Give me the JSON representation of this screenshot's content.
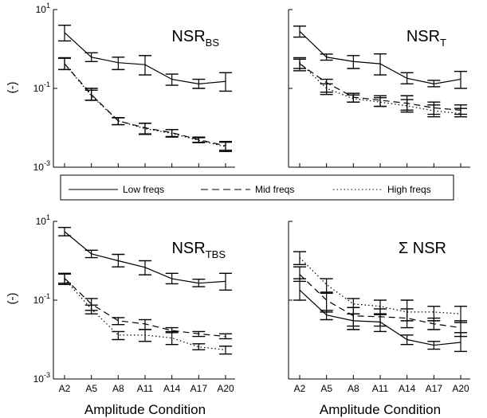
{
  "figure": {
    "legend": {
      "placement": "center-between-rows",
      "entries": [
        {
          "label": "Low freqs",
          "style": "solid"
        },
        {
          "label": "Mid freqs",
          "style": "dashed"
        },
        {
          "label": "High freqs",
          "style": "dotted"
        }
      ]
    },
    "axis_labels": {
      "xlabel": "Amplitude Condition",
      "ylabel": "(-)"
    }
  },
  "chart_data": [
    {
      "type": "line",
      "title_main": "NSR",
      "title_sub": "BS",
      "yscale": "log",
      "ylim": [
        0.001,
        10
      ],
      "yticks": [
        {
          "value": 10,
          "base": "10",
          "exp": "1"
        },
        {
          "value": 0.1,
          "base": "10",
          "exp": "-1"
        },
        {
          "value": 0.001,
          "base": "10",
          "exp": "-3"
        }
      ],
      "categories": [
        "A2",
        "A5",
        "A8",
        "A11",
        "A14",
        "A17",
        "A20"
      ],
      "show_xticklabels": false,
      "show_ylabels": true,
      "series": [
        {
          "name": "Low freqs",
          "style": "solid",
          "values": [
            2.6,
            0.62,
            0.45,
            0.4,
            0.17,
            0.13,
            0.15
          ],
          "lower": [
            1.6,
            0.48,
            0.3,
            0.22,
            0.12,
            0.1,
            0.085
          ],
          "upper": [
            4.0,
            0.8,
            0.62,
            0.68,
            0.23,
            0.17,
            0.25
          ]
        },
        {
          "name": "Mid freqs",
          "style": "dashed",
          "values": [
            0.42,
            0.07,
            0.015,
            0.01,
            0.0075,
            0.005,
            0.0035
          ],
          "lower": [
            0.3,
            0.05,
            0.012,
            0.007,
            0.006,
            0.0043,
            0.0027
          ],
          "upper": [
            0.6,
            0.1,
            0.018,
            0.013,
            0.009,
            0.0058,
            0.0045
          ]
        },
        {
          "name": "High freqs",
          "style": "dotted",
          "values": [
            0.42,
            0.065,
            0.015,
            0.0095,
            0.0072,
            0.0048,
            0.0033
          ],
          "lower": [
            0.3,
            0.05,
            0.012,
            0.0068,
            0.0058,
            0.0042,
            0.0025
          ],
          "upper": [
            0.58,
            0.09,
            0.018,
            0.013,
            0.009,
            0.0056,
            0.0043
          ]
        }
      ]
    },
    {
      "type": "line",
      "title_main": "NSR",
      "title_sub": "T",
      "yscale": "log",
      "ylim": [
        0.001,
        10
      ],
      "yticks": [],
      "categories": [
        "A2",
        "A5",
        "A8",
        "A11",
        "A14",
        "A17",
        "A20"
      ],
      "show_xticklabels": false,
      "show_ylabels": false,
      "series": [
        {
          "name": "Low freqs",
          "style": "solid",
          "values": [
            2.8,
            0.62,
            0.48,
            0.42,
            0.18,
            0.13,
            0.17
          ],
          "lower": [
            2.0,
            0.52,
            0.32,
            0.22,
            0.13,
            0.11,
            0.1
          ],
          "upper": [
            3.8,
            0.74,
            0.68,
            0.75,
            0.25,
            0.16,
            0.27
          ]
        },
        {
          "name": "Mid freqs",
          "style": "dashed",
          "values": [
            0.42,
            0.14,
            0.06,
            0.05,
            0.042,
            0.032,
            0.028
          ],
          "lower": [
            0.28,
            0.08,
            0.045,
            0.035,
            0.028,
            0.022,
            0.022
          ],
          "upper": [
            0.55,
            0.17,
            0.075,
            0.065,
            0.065,
            0.045,
            0.038
          ]
        },
        {
          "name": "High freqs",
          "style": "dotted",
          "values": [
            0.45,
            0.1,
            0.055,
            0.045,
            0.036,
            0.027,
            0.023
          ],
          "lower": [
            0.32,
            0.07,
            0.045,
            0.035,
            0.025,
            0.019,
            0.019
          ],
          "upper": [
            0.6,
            0.13,
            0.068,
            0.058,
            0.052,
            0.038,
            0.031
          ]
        }
      ]
    },
    {
      "type": "line",
      "title_main": "NSR",
      "title_sub": "TBS",
      "yscale": "log",
      "ylim": [
        0.001,
        10
      ],
      "yticks": [
        {
          "value": 10,
          "base": "10",
          "exp": "1"
        },
        {
          "value": 0.1,
          "base": "10",
          "exp": "-1"
        },
        {
          "value": 0.001,
          "base": "10",
          "exp": "-3"
        }
      ],
      "categories": [
        "A2",
        "A5",
        "A8",
        "A11",
        "A14",
        "A17",
        "A20"
      ],
      "show_xticklabels": true,
      "show_ylabels": true,
      "series": [
        {
          "name": "Low freqs",
          "style": "solid",
          "values": [
            5.5,
            1.5,
            1.0,
            0.68,
            0.35,
            0.27,
            0.3
          ],
          "lower": [
            4.3,
            1.2,
            0.7,
            0.44,
            0.26,
            0.22,
            0.18
          ],
          "upper": [
            7.0,
            1.85,
            1.45,
            1.0,
            0.48,
            0.34,
            0.48
          ]
        },
        {
          "name": "Mid freqs",
          "style": "dashed",
          "values": [
            0.36,
            0.08,
            0.03,
            0.025,
            0.017,
            0.014,
            0.012
          ],
          "lower": [
            0.27,
            0.055,
            0.024,
            0.018,
            0.015,
            0.012,
            0.0105
          ],
          "upper": [
            0.48,
            0.11,
            0.036,
            0.032,
            0.02,
            0.016,
            0.014
          ]
        },
        {
          "name": "High freqs",
          "style": "dotted",
          "values": [
            0.34,
            0.06,
            0.013,
            0.013,
            0.011,
            0.0065,
            0.0055
          ],
          "lower": [
            0.25,
            0.045,
            0.01,
            0.009,
            0.0075,
            0.0055,
            0.0043
          ],
          "upper": [
            0.46,
            0.075,
            0.016,
            0.018,
            0.016,
            0.0078,
            0.0068
          ]
        }
      ]
    },
    {
      "type": "line",
      "title_main": "Σ NSR",
      "title_sub": "",
      "yscale": "log",
      "ylim": [
        0.001,
        10
      ],
      "yticks": [],
      "categories": [
        "A2",
        "A5",
        "A8",
        "A11",
        "A14",
        "A17",
        "A20"
      ],
      "show_xticklabels": true,
      "show_ylabels": false,
      "series": [
        {
          "name": "Low freqs",
          "style": "solid",
          "values": [
            0.18,
            0.042,
            0.03,
            0.028,
            0.01,
            0.0072,
            0.0085
          ],
          "lower": [
            0.1,
            0.032,
            0.018,
            0.016,
            0.0075,
            0.0057,
            0.005
          ],
          "upper": [
            0.35,
            0.055,
            0.045,
            0.043,
            0.013,
            0.009,
            0.015
          ]
        },
        {
          "name": "Mid freqs",
          "style": "dashed",
          "values": [
            0.45,
            0.1,
            0.04,
            0.038,
            0.035,
            0.025,
            0.02
          ],
          "lower": [
            0.3,
            0.05,
            0.022,
            0.022,
            0.02,
            0.018,
            0.012
          ],
          "upper": [
            0.7,
            0.16,
            0.065,
            0.06,
            0.06,
            0.035,
            0.03
          ]
        },
        {
          "name": "High freqs",
          "style": "dotted",
          "values": [
            1.2,
            0.25,
            0.08,
            0.07,
            0.05,
            0.05,
            0.045
          ],
          "lower": [
            0.8,
            0.15,
            0.045,
            0.045,
            0.03,
            0.03,
            0.027
          ],
          "upper": [
            1.7,
            0.35,
            0.11,
            0.1,
            0.1,
            0.07,
            0.07
          ]
        }
      ]
    }
  ]
}
